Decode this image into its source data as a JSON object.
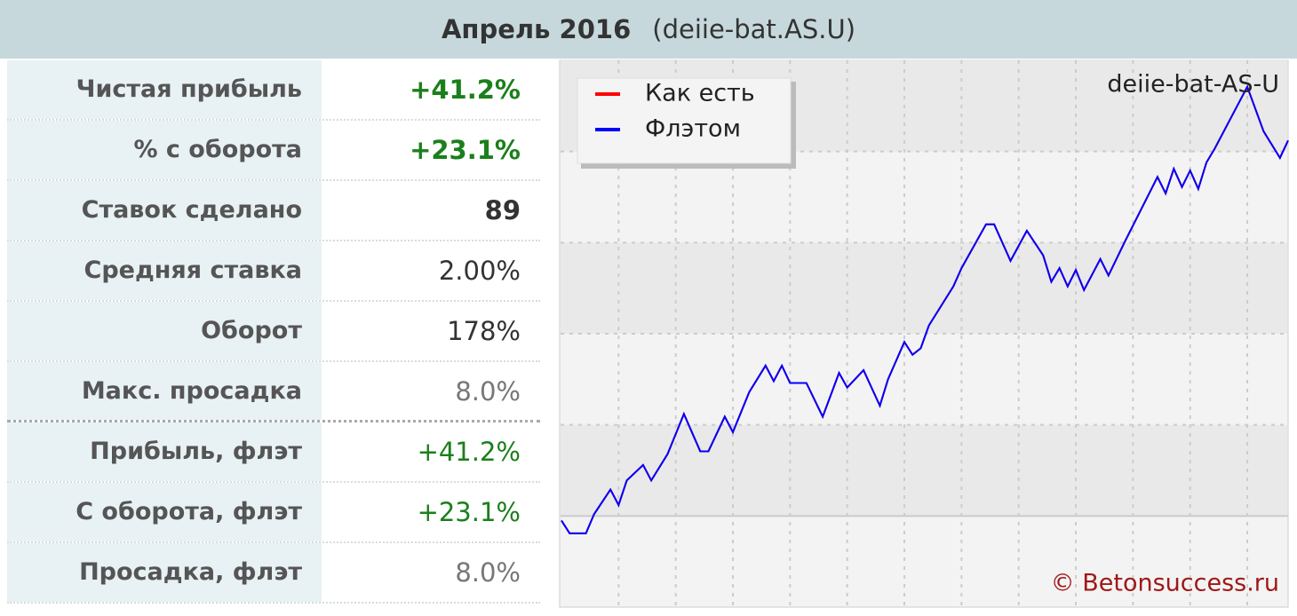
{
  "header": {
    "title": "Апрель 2016",
    "subtitle": "(deiie-bat.AS.U)"
  },
  "stats": {
    "rows": [
      {
        "label": "Чистая прибыль",
        "value": "+41.2%"
      },
      {
        "label": "% с оборота",
        "value": "+23.1%"
      },
      {
        "label": "Ставок сделано",
        "value": "89"
      },
      {
        "label": "Средняя ставка",
        "value": "2.00%"
      },
      {
        "label": "Оборот",
        "value": "178%"
      },
      {
        "label": "Макс. просадка",
        "value": "8.0%"
      },
      {
        "label": "Прибыль, флэт",
        "value": "+41.2%"
      },
      {
        "label": "С оборота, флэт",
        "value": "+23.1%"
      },
      {
        "label": "Просадка, флэт",
        "value": "8.0%"
      }
    ]
  },
  "chart_data": {
    "type": "line",
    "annotation": "deiie-bat-AS-U",
    "watermark": "© Betonsuccess.ru",
    "x": [
      0,
      1,
      3,
      4,
      6,
      7,
      8,
      10,
      11,
      13,
      15,
      17,
      18,
      20,
      21,
      23,
      25,
      26,
      27,
      28,
      30,
      32,
      34,
      35,
      37,
      39,
      40,
      42,
      43,
      44,
      45,
      48,
      49,
      52,
      53,
      55,
      57,
      59,
      60,
      61,
      62,
      63,
      64,
      66,
      67,
      69,
      73,
      74,
      75,
      76,
      77,
      78,
      79,
      80,
      82,
      84,
      86,
      88,
      89
    ],
    "series": [
      {
        "name": "Как есть",
        "color": "#ff0000",
        "values": [
          -0.5,
          -1.9,
          -1.9,
          0.2,
          2.9,
          1.2,
          3.9,
          5.6,
          3.9,
          6.8,
          11.2,
          7.1,
          7.1,
          10.9,
          9.2,
          13.6,
          16.5,
          14.8,
          16.5,
          14.6,
          14.6,
          10.9,
          15.7,
          14.1,
          16.0,
          12.1,
          15.0,
          19.1,
          17.7,
          18.4,
          20.9,
          25.2,
          27.2,
          32.0,
          32.0,
          28.0,
          31.3,
          28.6,
          25.7,
          27.2,
          25.2,
          27.0,
          24.8,
          28.2,
          26.4,
          30.1,
          37.2,
          35.4,
          38.1,
          36.1,
          37.9,
          35.9,
          38.8,
          40.3,
          43.7,
          47.1,
          42.2,
          39.3,
          41.2
        ]
      },
      {
        "name": "Флэтом",
        "color": "#0000ff",
        "values": [
          -0.5,
          -1.9,
          -1.9,
          0.2,
          2.9,
          1.2,
          3.9,
          5.6,
          3.9,
          6.8,
          11.2,
          7.1,
          7.1,
          10.9,
          9.2,
          13.6,
          16.5,
          14.8,
          16.5,
          14.6,
          14.6,
          10.9,
          15.7,
          14.1,
          16.0,
          12.1,
          15.0,
          19.1,
          17.7,
          18.4,
          20.9,
          25.2,
          27.2,
          32.0,
          32.0,
          28.0,
          31.3,
          28.6,
          25.7,
          27.2,
          25.2,
          27.0,
          24.8,
          28.2,
          26.4,
          30.1,
          37.2,
          35.4,
          38.1,
          36.1,
          37.9,
          35.9,
          38.8,
          40.3,
          43.7,
          47.1,
          42.2,
          39.3,
          41.2
        ]
      }
    ],
    "xlim": [
      0,
      89
    ],
    "xticks": [
      7,
      14,
      21,
      28,
      35,
      42,
      49,
      56,
      63,
      70,
      77,
      84
    ],
    "ylim": [
      -10,
      50
    ],
    "yticks": [
      0,
      10,
      20,
      30,
      40
    ],
    "grid": true
  }
}
